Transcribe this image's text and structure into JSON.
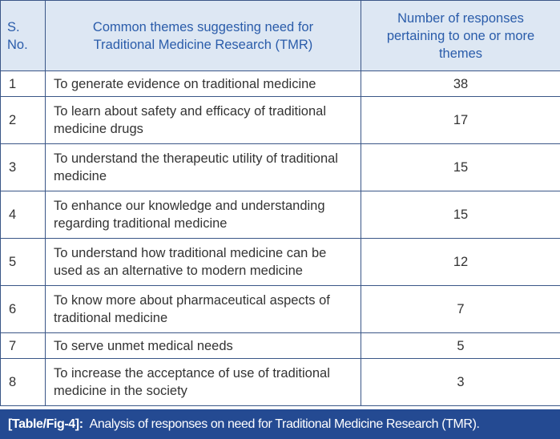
{
  "table": {
    "headers": [
      "S. No.",
      "Common themes suggesting need for Traditional Medicine Research (TMR)",
      "Number of responses pertaining to one or more themes"
    ],
    "rows": [
      {
        "no": "1",
        "theme": "To generate evidence on traditional medicine",
        "count": "38"
      },
      {
        "no": "2",
        "theme": "To learn about safety and efficacy of traditional medicine drugs",
        "count": "17"
      },
      {
        "no": "3",
        "theme": "To understand the therapeutic utility of traditional medicine",
        "count": "15"
      },
      {
        "no": "4",
        "theme": "To enhance our knowledge and understanding regarding traditional medicine",
        "count": "15"
      },
      {
        "no": "5",
        "theme": "To understand how traditional medicine can be used as an alternative to modern medicine",
        "count": "12"
      },
      {
        "no": "6",
        "theme": "To know more about pharmaceutical aspects of traditional medicine",
        "count": "7"
      },
      {
        "no": "7",
        "theme": "To serve unmet medical needs",
        "count": "5"
      },
      {
        "no": "8",
        "theme": "To increase the acceptance of use of traditional medicine in the society",
        "count": "3"
      }
    ]
  },
  "caption": {
    "label": "[Table/Fig-4]:",
    "text": "Analysis of responses on need for Traditional Medicine Research (TMR)."
  },
  "colors": {
    "header_bg": "#dde7f3",
    "header_text": "#2a5caa",
    "caption_bg": "#244a92",
    "border": "#3a5687"
  }
}
